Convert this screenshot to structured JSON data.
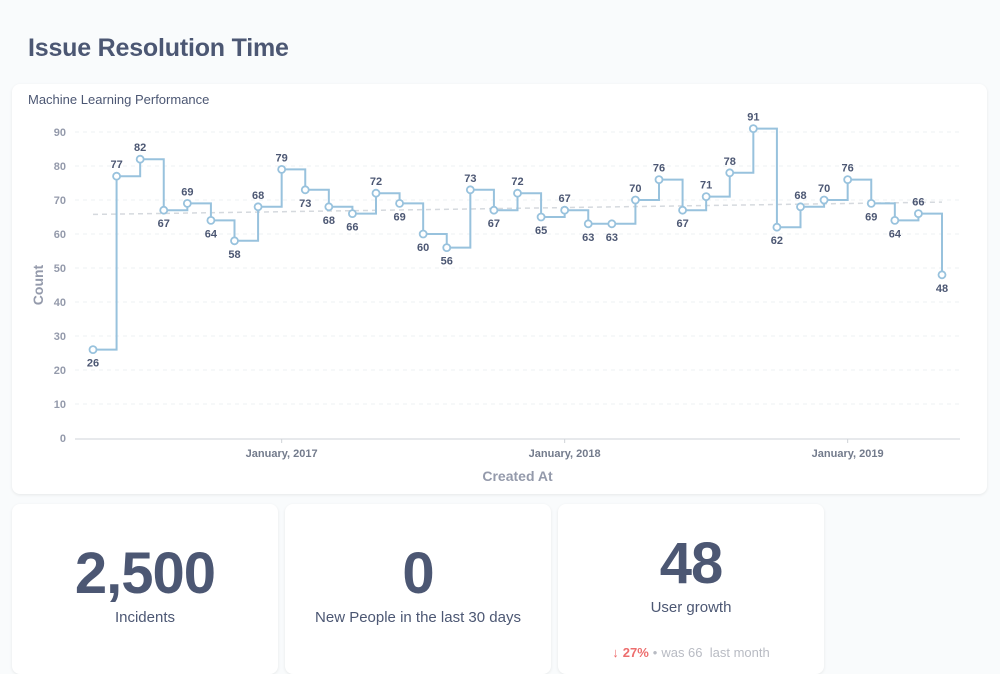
{
  "page": {
    "title": "Issue Resolution Time"
  },
  "chart_card": {
    "title": "Machine Learning Performance"
  },
  "chart_data": {
    "type": "line",
    "step": true,
    "title": "Machine Learning Performance",
    "xlabel": "Created At",
    "ylabel": "Count",
    "ylim": [
      0,
      90
    ],
    "y_ticks": [
      0,
      10,
      20,
      30,
      40,
      50,
      60,
      70,
      80,
      90
    ],
    "x_ticks": [
      "January, 2017",
      "January, 2018",
      "January, 2019"
    ],
    "x_tick_index": [
      8,
      20,
      32
    ],
    "values": [
      26,
      77,
      82,
      67,
      69,
      64,
      58,
      68,
      79,
      73,
      68,
      66,
      72,
      69,
      60,
      56,
      73,
      67,
      72,
      65,
      67,
      63,
      63,
      70,
      76,
      67,
      71,
      78,
      91,
      62,
      68,
      70,
      76,
      69,
      64,
      66,
      48
    ],
    "trend_line": true,
    "grid": true,
    "line_color": "#98c2dd",
    "trend_color": "#d5d9de"
  },
  "metrics": [
    {
      "value": "2,500",
      "label": "Incidents"
    },
    {
      "value": "0",
      "label": "New People in the last 30 days"
    },
    {
      "value": "48",
      "label": "User growth",
      "change_arrow_icon": "arrow-down-icon",
      "change_arrow": "↓",
      "change_pct": "27%",
      "separator": "•",
      "previous_text": "was 66",
      "previous_period": "last month",
      "negative_color": "#ed6e6e"
    }
  ]
}
